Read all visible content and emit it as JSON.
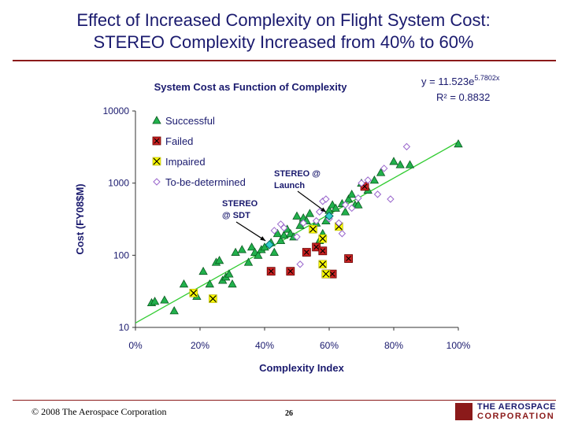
{
  "slide": {
    "title_line1": "Effect of Increased Complexity on Flight System Cost:",
    "title_line2": "STEREO Complexity Increased from 40% to 60%",
    "copyright": "© 2008 The Aerospace Corporation",
    "page_number": "26",
    "logo_line1": "THE AEROSPACE",
    "logo_line2": "CORPORATION"
  },
  "chart_data": {
    "type": "scatter",
    "title": "System Cost as Function of Complexity",
    "xlabel": "Complexity Index",
    "ylabel": "Cost (FY08$M)",
    "xlim": [
      0,
      1
    ],
    "ylim": [
      10,
      10000
    ],
    "y_scale": "log",
    "x_ticks": [
      {
        "v": 0,
        "label": "0%"
      },
      {
        "v": 0.2,
        "label": "20%"
      },
      {
        "v": 0.4,
        "label": "40%"
      },
      {
        "v": 0.6,
        "label": "60%"
      },
      {
        "v": 0.8,
        "label": "80%"
      },
      {
        "v": 1,
        "label": "100%"
      }
    ],
    "y_ticks": [
      {
        "v": 10,
        "label": "10"
      },
      {
        "v": 100,
        "label": "100"
      },
      {
        "v": 1000,
        "label": "1000"
      },
      {
        "v": 10000,
        "label": "10000"
      }
    ],
    "equation": "y = 11.523e",
    "equation_exp": "5.7802x",
    "r_squared": "R² = 0.8832",
    "trendline": {
      "a": 11.523,
      "b": 5.7802,
      "color": "#33cc33"
    },
    "legend_position": "top-left",
    "series": [
      {
        "name": "Successful",
        "marker": "triangle",
        "color": "#22b14c",
        "points": [
          [
            0.05,
            22
          ],
          [
            0.06,
            23
          ],
          [
            0.09,
            24
          ],
          [
            0.12,
            17
          ],
          [
            0.15,
            40
          ],
          [
            0.19,
            27
          ],
          [
            0.21,
            60
          ],
          [
            0.23,
            40
          ],
          [
            0.25,
            80
          ],
          [
            0.26,
            85
          ],
          [
            0.27,
            45
          ],
          [
            0.28,
            50
          ],
          [
            0.29,
            55
          ],
          [
            0.3,
            40
          ],
          [
            0.31,
            110
          ],
          [
            0.33,
            120
          ],
          [
            0.35,
            80
          ],
          [
            0.36,
            130
          ],
          [
            0.37,
            110
          ],
          [
            0.38,
            100
          ],
          [
            0.39,
            120
          ],
          [
            0.4,
            130
          ],
          [
            0.42,
            150
          ],
          [
            0.43,
            110
          ],
          [
            0.44,
            200
          ],
          [
            0.45,
            160
          ],
          [
            0.46,
            190
          ],
          [
            0.47,
            230
          ],
          [
            0.48,
            200
          ],
          [
            0.49,
            180
          ],
          [
            0.5,
            350
          ],
          [
            0.51,
            260
          ],
          [
            0.52,
            330
          ],
          [
            0.53,
            300
          ],
          [
            0.54,
            380
          ],
          [
            0.55,
            230
          ],
          [
            0.56,
            280
          ],
          [
            0.57,
            160
          ],
          [
            0.58,
            200
          ],
          [
            0.59,
            300
          ],
          [
            0.6,
            420
          ],
          [
            0.61,
            500
          ],
          [
            0.62,
            450
          ],
          [
            0.64,
            520
          ],
          [
            0.65,
            400
          ],
          [
            0.66,
            600
          ],
          [
            0.67,
            700
          ],
          [
            0.68,
            500
          ],
          [
            0.69,
            500
          ],
          [
            0.7,
            1000
          ],
          [
            0.72,
            800
          ],
          [
            0.74,
            1100
          ],
          [
            0.76,
            1400
          ],
          [
            0.8,
            2000
          ],
          [
            0.82,
            1800
          ],
          [
            0.85,
            1800
          ],
          [
            1.0,
            3500
          ]
        ]
      },
      {
        "name": "Failed",
        "marker": "square",
        "color": "#cc2222",
        "points": [
          [
            0.42,
            60
          ],
          [
            0.48,
            60
          ],
          [
            0.53,
            110
          ],
          [
            0.56,
            130
          ],
          [
            0.58,
            115
          ],
          [
            0.59,
            55
          ],
          [
            0.61,
            55
          ],
          [
            0.66,
            90
          ],
          [
            0.71,
            900
          ]
        ]
      },
      {
        "name": "Impaired",
        "marker": "square-x",
        "color": "#ffff00",
        "points": [
          [
            0.18,
            30
          ],
          [
            0.24,
            25
          ],
          [
            0.55,
            230
          ],
          [
            0.58,
            170
          ],
          [
            0.58,
            75
          ],
          [
            0.59,
            55
          ],
          [
            0.63,
            250
          ]
        ]
      },
      {
        "name": "To-be-determined",
        "marker": "diamond",
        "color": "#9966cc",
        "points": [
          [
            0.43,
            220
          ],
          [
            0.45,
            270
          ],
          [
            0.46,
            240
          ],
          [
            0.5,
            180
          ],
          [
            0.51,
            75
          ],
          [
            0.52,
            280
          ],
          [
            0.56,
            300
          ],
          [
            0.57,
            400
          ],
          [
            0.58,
            560
          ],
          [
            0.59,
            600
          ],
          [
            0.6,
            320
          ],
          [
            0.63,
            280
          ],
          [
            0.64,
            200
          ],
          [
            0.65,
            500
          ],
          [
            0.67,
            450
          ],
          [
            0.69,
            620
          ],
          [
            0.7,
            1000
          ],
          [
            0.72,
            1100
          ],
          [
            0.75,
            700
          ],
          [
            0.77,
            1600
          ],
          [
            0.79,
            600
          ],
          [
            0.84,
            3200
          ]
        ]
      }
    ],
    "stereo_points": [
      {
        "label_line1": "STEREO",
        "label_line2": "@ SDT",
        "x": 0.415,
        "y": 140,
        "color": "#33cccc"
      },
      {
        "label_line1": "STEREO @",
        "label_line2": "Launch",
        "x": 0.6,
        "y": 350,
        "color": "#33cccc"
      }
    ]
  }
}
